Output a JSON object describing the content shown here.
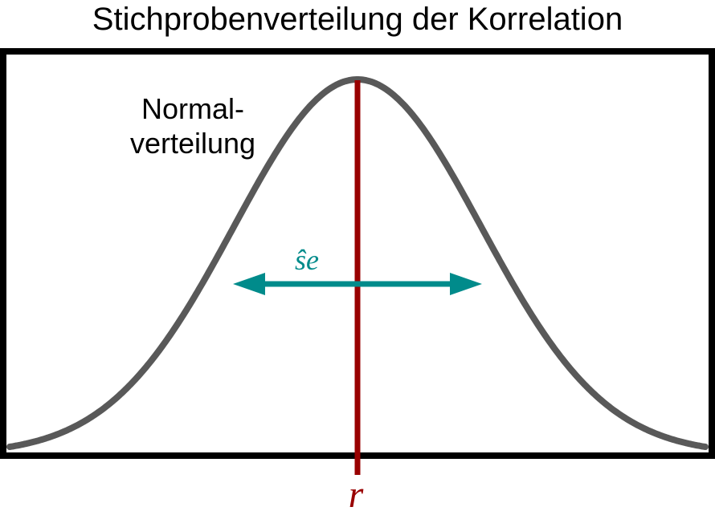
{
  "title": "Stichprobenverteilung der Korrelation",
  "curve_label": {
    "line1": "Normal-",
    "line2": "verteilung"
  },
  "se_label": "ŝe",
  "r_label": "r",
  "colors": {
    "frame": "#000000",
    "curve": "#595959",
    "mean_line": "#990000",
    "se_arrow": "#008B8B"
  }
}
